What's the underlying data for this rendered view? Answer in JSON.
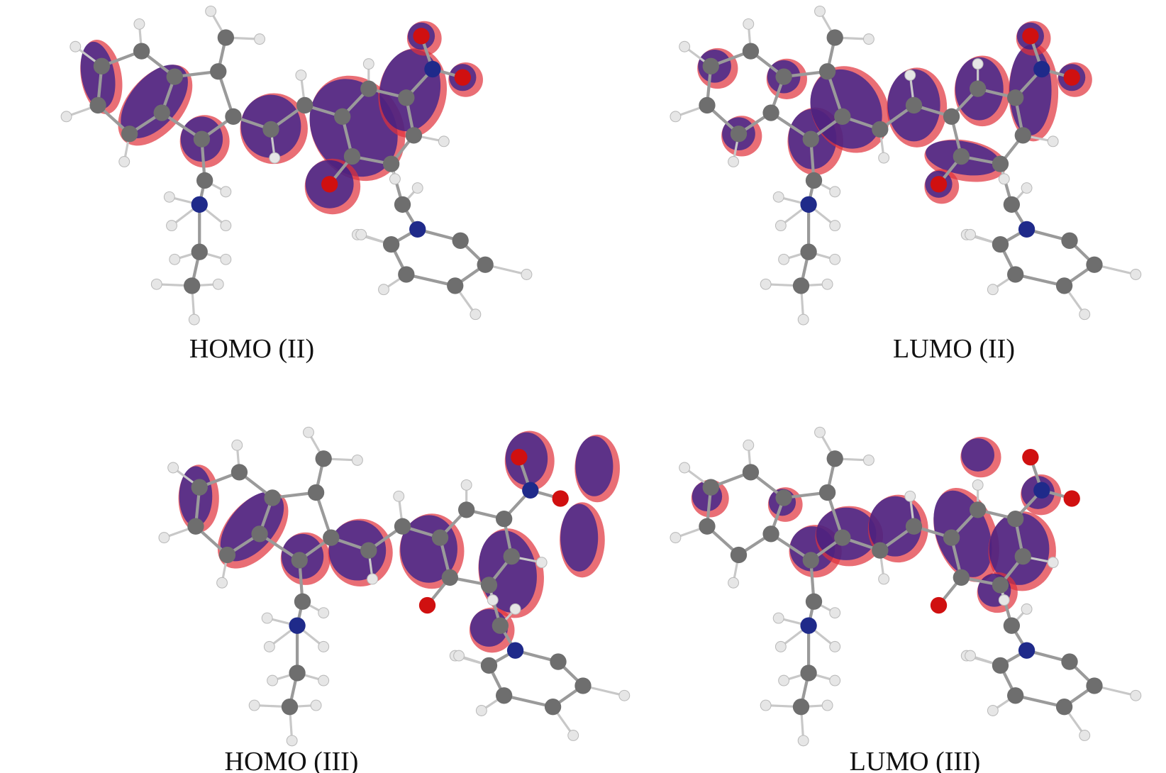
{
  "panels": [
    {
      "label": "HOMO (II)"
    },
    {
      "label": "LUMO (II)"
    },
    {
      "label": "HOMO (III)"
    },
    {
      "label": "LUMO (III)"
    }
  ],
  "colors": {
    "positive_lobe": "#2e1f8f",
    "negative_lobe": "#e0303a",
    "carbon": "#6e6e6e",
    "hydrogen": "#e6e6e6",
    "oxygen": "#d01010",
    "nitrogen": "#1f2a8a"
  }
}
